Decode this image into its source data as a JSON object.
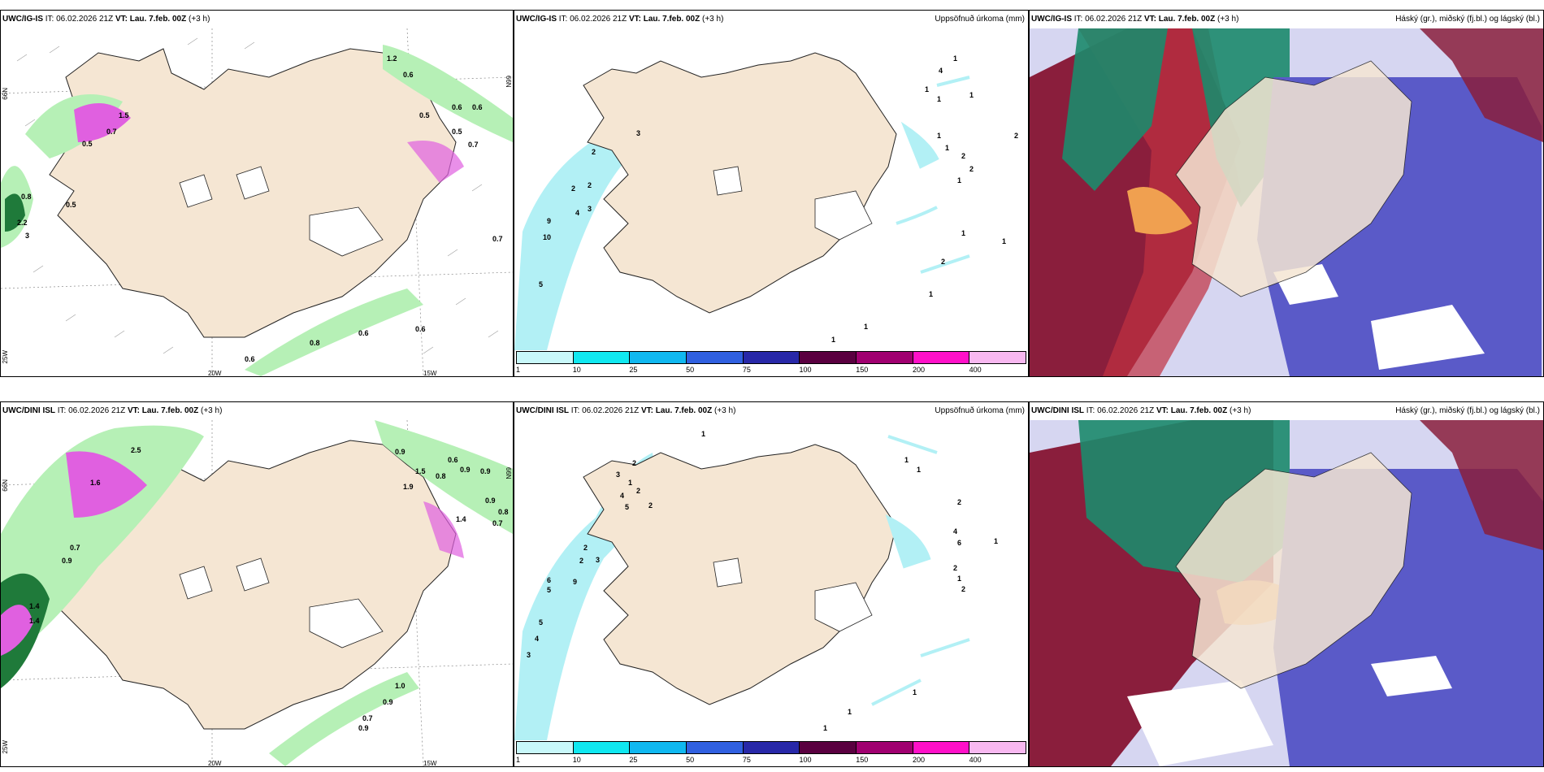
{
  "colors": {
    "land": "#f5e6d3",
    "coast": "#222222",
    "sea_precip": "#b2f0f5",
    "green_light": "#b6f0b6",
    "green_dark": "#1f7a3a",
    "magenta": "#e060e0",
    "blue_cloud": "#5a5ac8",
    "maroon_cloud": "#8a1e3c",
    "teal_cloud": "#1c8a6c"
  },
  "panels": {
    "top_left": {
      "model": "UWC/IG-IS",
      "it_label": "IT:",
      "it_value": "06.02.2026 21Z",
      "vt_label": "VT:",
      "vt_value": "Lau. 7.feb. 00Z",
      "lead": "(+3 h)",
      "lat_left": "66N",
      "lat_right": "66N",
      "lon_left": "25W",
      "lon_bottom_1": "20W",
      "lon_bottom_2": "15W",
      "labels": [
        "0.6",
        "0.8",
        "0.6",
        "0.6",
        "0.7",
        "0.5",
        "0.7",
        "0.6",
        "0.6",
        "1.2",
        "0.6",
        "0.5",
        "2.2",
        "3",
        "0.8",
        "1.5",
        "0.7",
        "0.5",
        "0.5"
      ]
    },
    "top_mid": {
      "model": "UWC/IG-IS",
      "it_label": "IT:",
      "it_value": "06.02.2026 21Z",
      "vt_label": "VT:",
      "vt_value": "Lau. 7.feb. 00Z",
      "lead": "(+3 h)",
      "title_right": "Uppsöfnuð úrkoma (mm)",
      "labels": [
        "1",
        "4",
        "1",
        "2",
        "3",
        "2",
        "2",
        "2",
        "9",
        "10",
        "5",
        "4",
        "3",
        "1",
        "1",
        "2",
        "2",
        "1",
        "1",
        "1",
        "1",
        "2",
        "1",
        "1",
        "1",
        "1"
      ]
    },
    "top_right": {
      "model": "UWC/IG-IS",
      "it_label": "IT:",
      "it_value": "06.02.2026 21Z",
      "vt_label": "VT:",
      "vt_value": "Lau. 7.feb. 00Z",
      "lead": "(+3 h)",
      "title_right": "Háský (gr.), miðský (fj.bl.) og lágský (bl.)"
    },
    "bottom_left": {
      "model": "UWC/DINI ISL",
      "it_label": "IT:",
      "it_value": "06.02.2026 21Z",
      "vt_label": "VT:",
      "vt_value": "Lau. 7.feb. 00Z",
      "lead": "(+3 h)",
      "lat_left": "66N",
      "lat_right": "66N",
      "lon_left": "25W",
      "lon_bottom_1": "20W",
      "lon_bottom_2": "15W",
      "labels": [
        "1.5",
        "0.9",
        "0.6",
        "0.9",
        "0.9",
        "0.9",
        "0.8",
        "0.7",
        "0.8",
        "1.4",
        "1.9",
        "0.7",
        "0.9",
        "1.4",
        "1.4",
        "1.0",
        "0.9",
        "0.7",
        "0.9",
        "2.5",
        "1.6"
      ]
    },
    "bottom_mid": {
      "model": "UWC/DINI ISL",
      "it_label": "IT:",
      "it_value": "06.02.2026 21Z",
      "vt_label": "VT:",
      "vt_value": "Lau. 7.feb. 00Z",
      "lead": "(+3 h)",
      "title_right": "Uppsöfnuð úrkoma (mm)",
      "labels": [
        "1",
        "2",
        "3",
        "1",
        "2",
        "4",
        "5",
        "2",
        "2",
        "2",
        "3",
        "9",
        "6",
        "5",
        "5",
        "4",
        "3",
        "1",
        "1",
        "2",
        "4",
        "6",
        "1",
        "2",
        "1",
        "2",
        "1",
        "1",
        "1"
      ]
    },
    "bottom_right": {
      "model": "UWC/DINI ISL",
      "it_label": "IT:",
      "it_value": "06.02.2026 21Z",
      "vt_label": "VT:",
      "vt_value": "Lau. 7.feb. 00Z",
      "lead": "(+3 h)",
      "title_right": "Háský (gr.), miðský (fj.bl.) og lágský (bl.)"
    }
  },
  "legend": {
    "ticks": [
      "1",
      "10",
      "25",
      "50",
      "75",
      "100",
      "150",
      "200",
      "400"
    ],
    "colors": [
      "#c8f8fa",
      "#10e8f0",
      "#10b8f0",
      "#3060e0",
      "#2828a8",
      "#5a0040",
      "#a00070",
      "#ff10c8",
      "#f8b8f0"
    ]
  }
}
